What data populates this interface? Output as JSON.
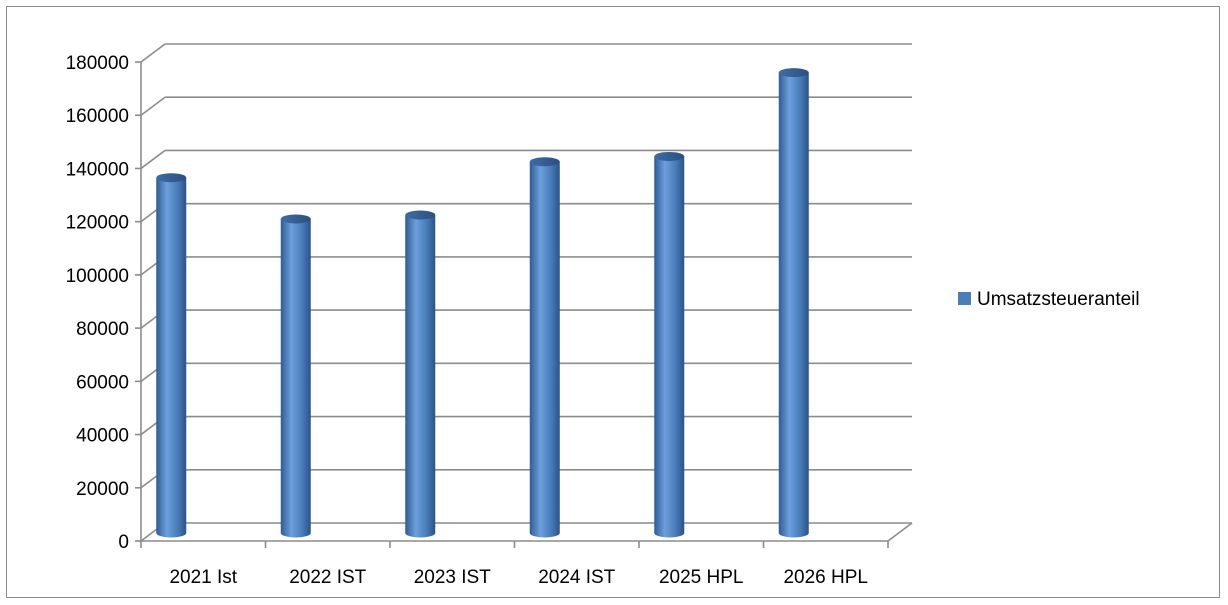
{
  "chart_data": {
    "type": "bar",
    "title": "",
    "xlabel": "",
    "ylabel": "",
    "categories": [
      "2021 Ist",
      "2022 IST",
      "2023 IST",
      "2024 IST",
      "2025 HPL",
      "2026 HPL"
    ],
    "series": [
      {
        "name": "Umsatzsteueranteil",
        "values": [
          133500,
          118000,
          119500,
          139500,
          141500,
          173000
        ]
      }
    ],
    "ylim": [
      0,
      180000
    ],
    "yticks": [
      "0",
      "20000",
      "40000",
      "60000",
      "80000",
      "100000",
      "120000",
      "140000",
      "160000",
      "180000"
    ],
    "grid": true,
    "legend_position": "right",
    "colors": {
      "bar_main": "#4a7ebb",
      "bar_light": "#6d9fdc",
      "bar_dark": "#2f5b93",
      "grid": "#8c8c8c",
      "axis": "#8c8c8c"
    }
  }
}
